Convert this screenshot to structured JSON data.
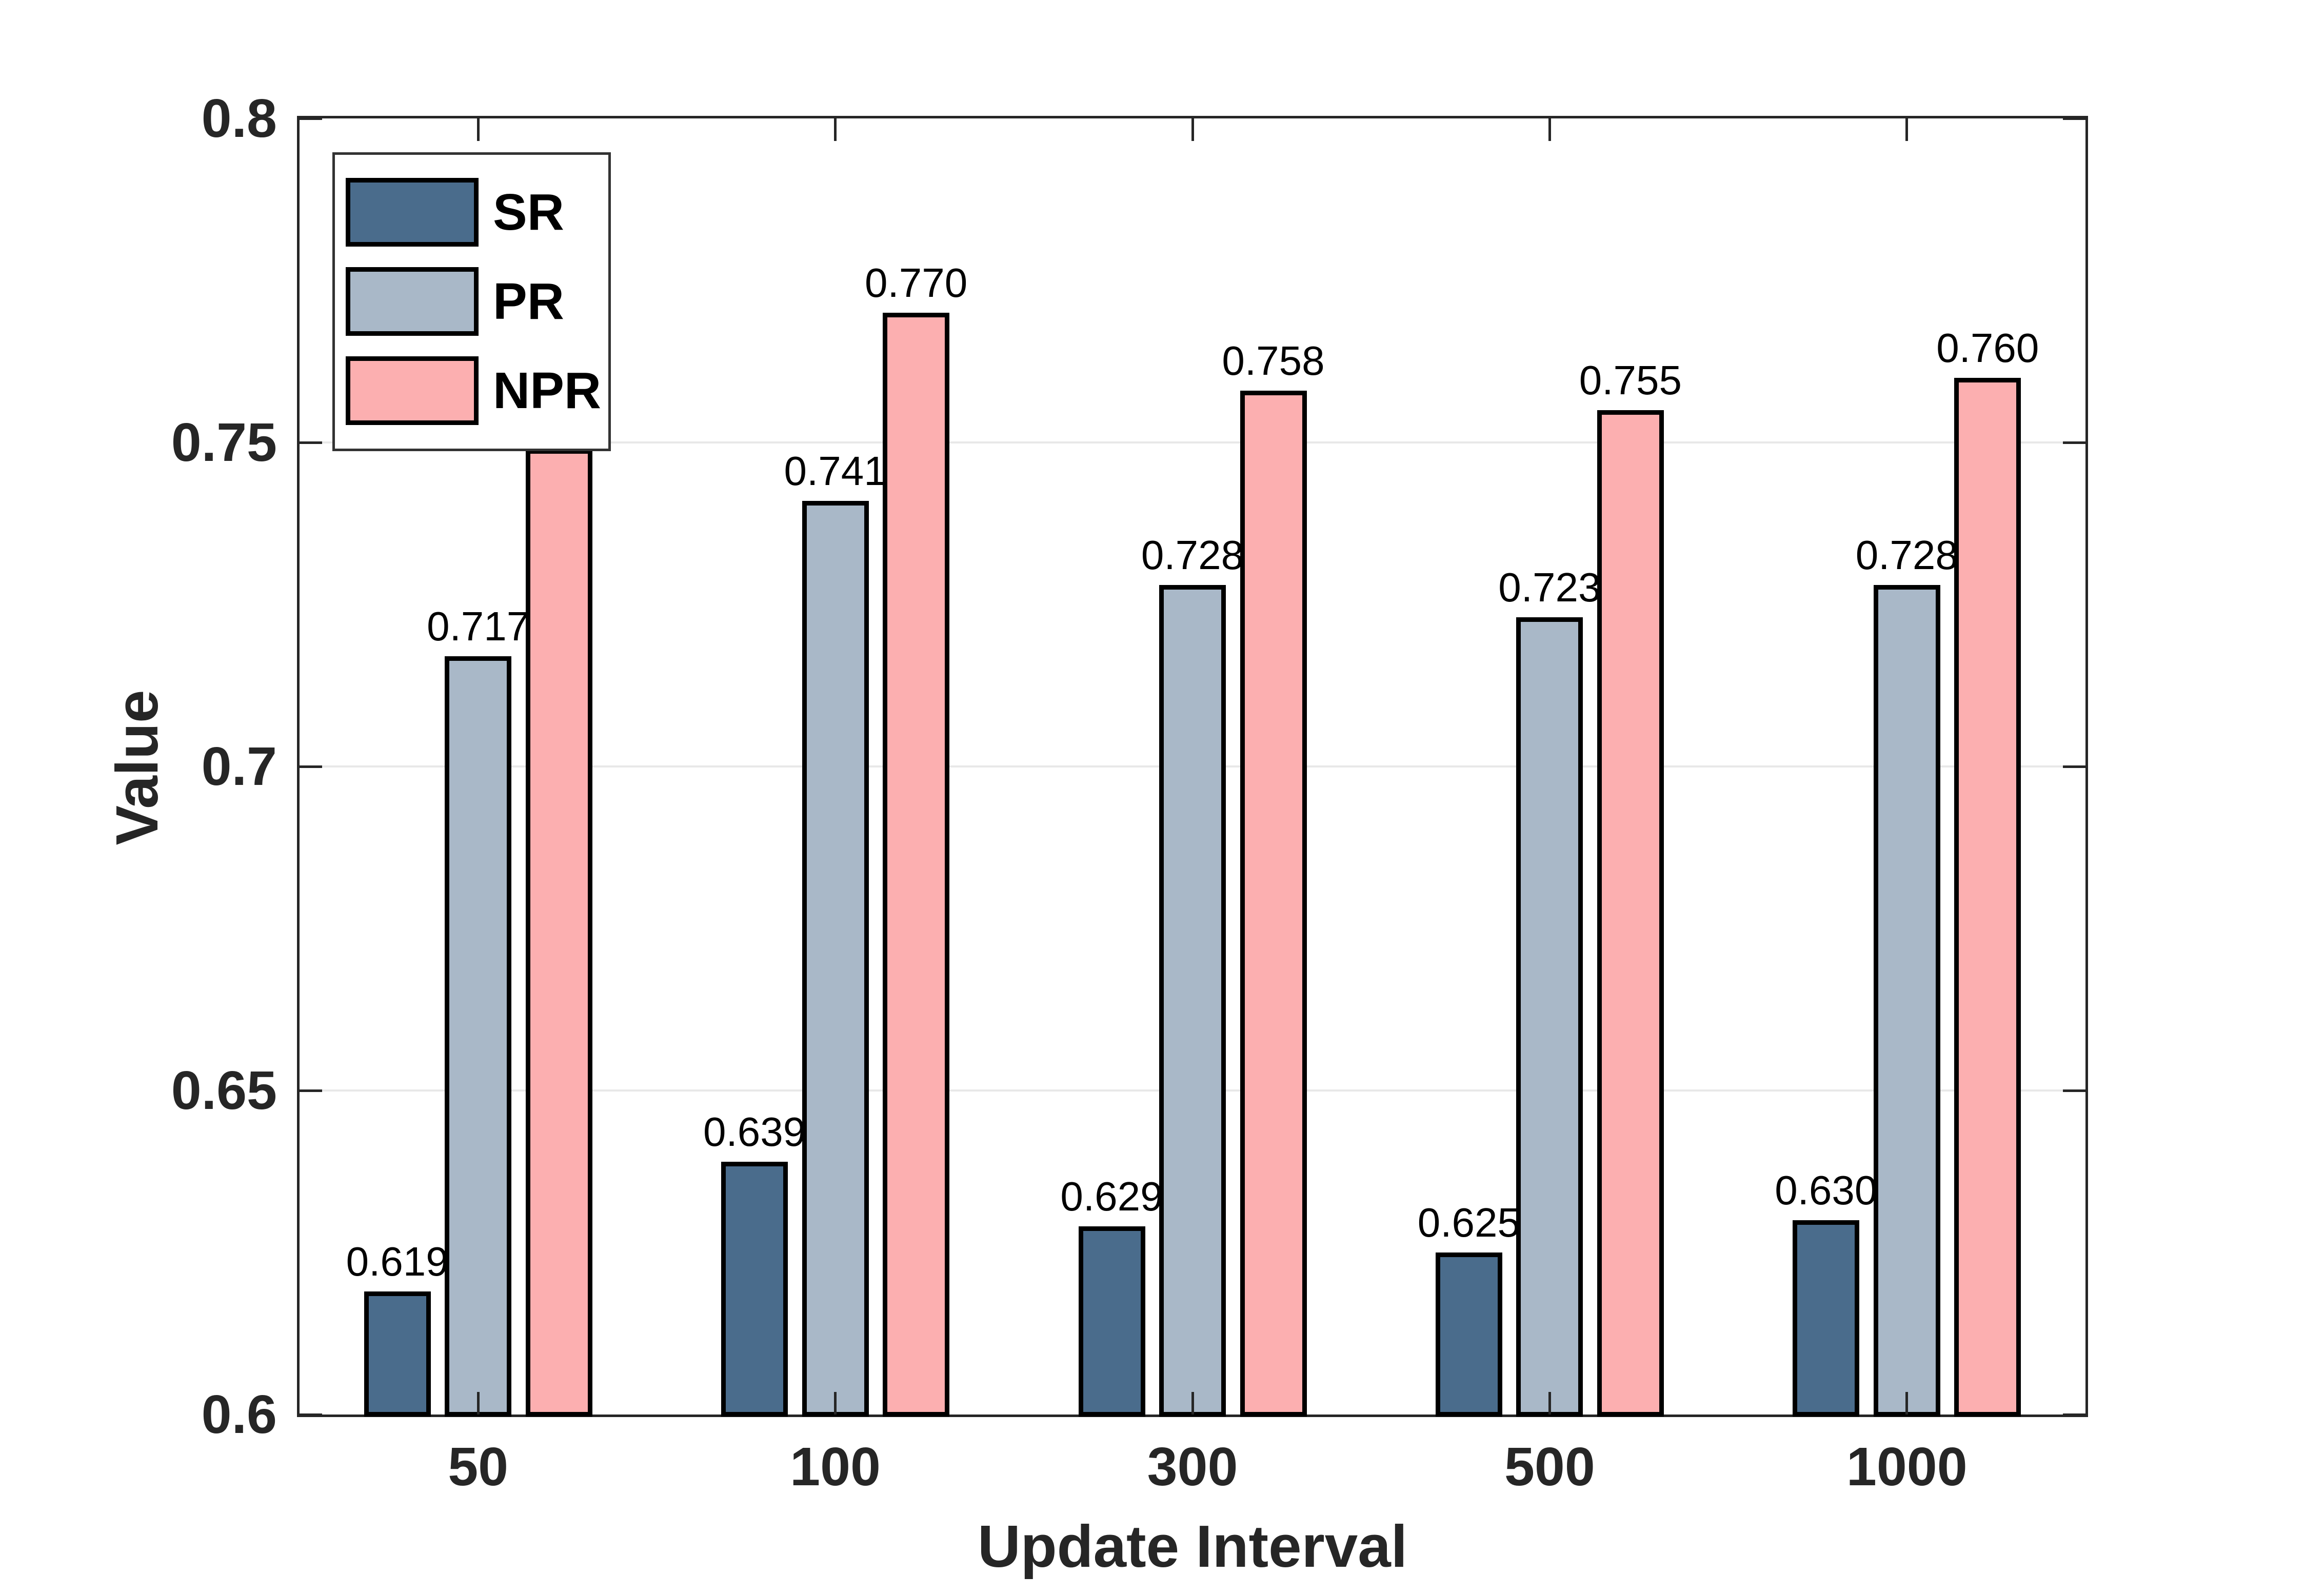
{
  "chart_data": {
    "type": "bar",
    "title": "",
    "xlabel": "Update Interval",
    "ylabel": "Value",
    "categories": [
      "50",
      "100",
      "300",
      "500",
      "1000"
    ],
    "series": [
      {
        "name": "SR",
        "color": "#4a6c8c",
        "values": [
          0.619,
          0.639,
          0.629,
          0.625,
          0.63
        ],
        "labels": [
          "0.619",
          "0.639",
          "0.629",
          "0.625",
          "0.630"
        ]
      },
      {
        "name": "PR",
        "color": "#a9b8c8",
        "values": [
          0.717,
          0.741,
          0.728,
          0.723,
          0.728
        ],
        "labels": [
          "0.717",
          "0.741",
          "0.728",
          "0.723",
          "0.728"
        ]
      },
      {
        "name": "NPR",
        "color": "#fcafb0",
        "values": [
          0.749,
          0.77,
          0.758,
          0.755,
          0.76
        ],
        "labels": [
          "0.749",
          "0.770",
          "0.758",
          "0.755",
          "0.760"
        ]
      }
    ],
    "ylim": [
      0.6,
      0.8
    ],
    "yticks": {
      "values": [
        0.8,
        0.75,
        0.7,
        0.65,
        0.6
      ],
      "labels": [
        "0.8",
        "0.75",
        "0.7",
        "0.65",
        "0.6"
      ]
    },
    "grid_values": [
      0.75,
      0.7,
      0.65
    ],
    "grid": "y-on",
    "legend_position": "top-left"
  },
  "legend": {
    "entries": [
      {
        "label": "SR"
      },
      {
        "label": "PR"
      },
      {
        "label": "NPR"
      }
    ]
  },
  "colors": {
    "axis": "#262626",
    "grid": "#e8e8e8",
    "bar_edge": "#000000",
    "background": "#ffffff"
  }
}
